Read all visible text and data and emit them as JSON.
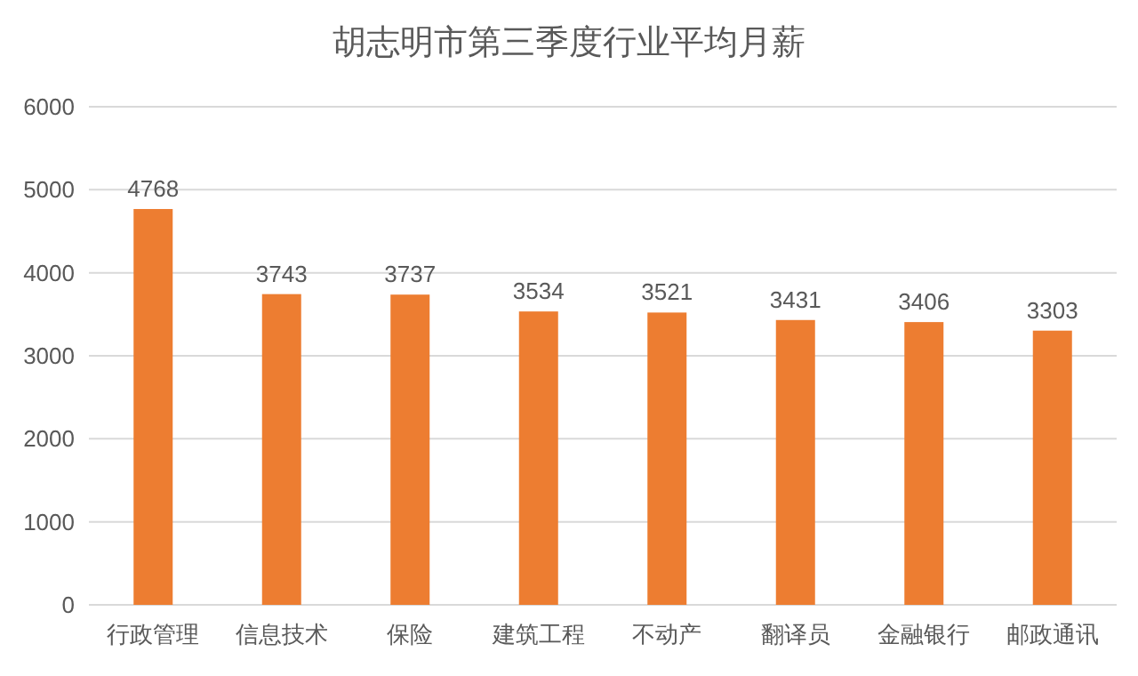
{
  "chart_data": {
    "type": "bar",
    "title": "胡志明市第三季度行业平均月薪",
    "categories": [
      "行政管理",
      "信息技术",
      "保险",
      "建筑工程",
      "不动产",
      "翻译员",
      "金融银行",
      "邮政通讯"
    ],
    "values": [
      4768,
      3743,
      3737,
      3534,
      3521,
      3431,
      3406,
      3303
    ],
    "color": "#ed7d31",
    "ylim": [
      0,
      6000
    ],
    "yticks": [
      0,
      1000,
      2000,
      3000,
      4000,
      5000,
      6000
    ],
    "grid": "y",
    "data_labels": true
  }
}
